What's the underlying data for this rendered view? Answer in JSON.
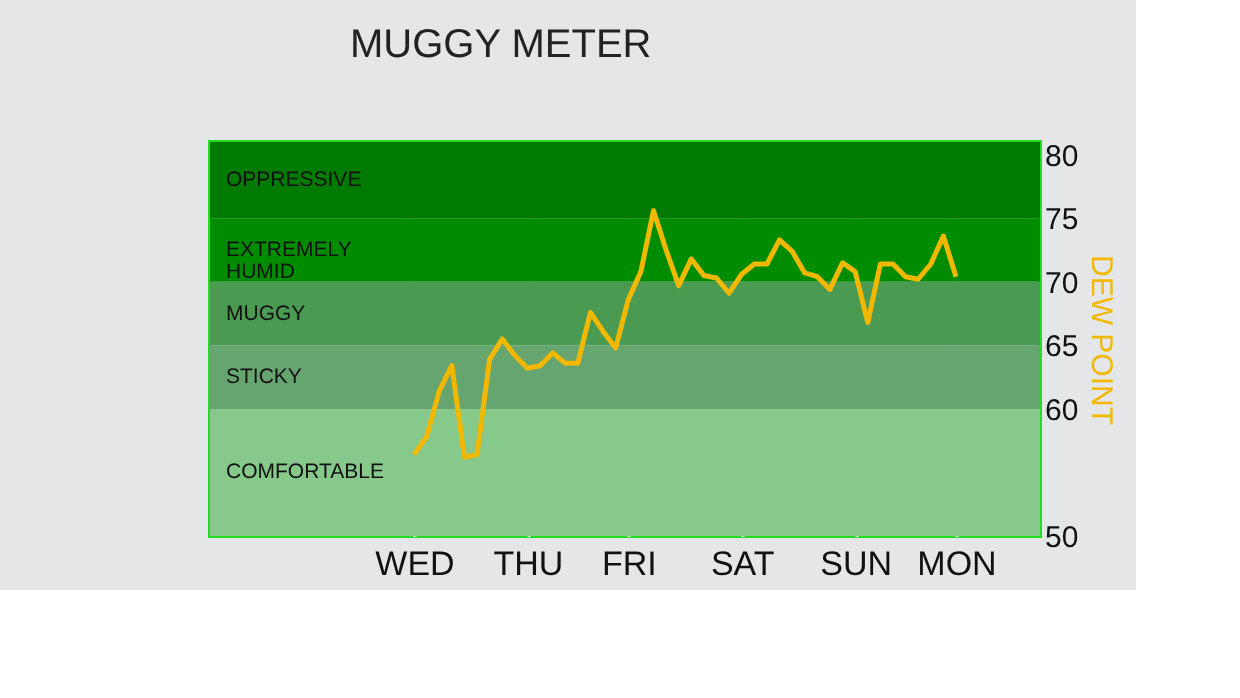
{
  "chart_data": {
    "type": "line",
    "title": "MUGGY METER",
    "ylabel": "DEW POINT",
    "categories": [
      "WED",
      null,
      null,
      null,
      null,
      null,
      null,
      null,
      null,
      "THU",
      null,
      null,
      null,
      null,
      null,
      null,
      null,
      "FRI",
      null,
      null,
      null,
      null,
      null,
      null,
      null,
      null,
      "SAT",
      null,
      null,
      null,
      null,
      null,
      null,
      null,
      null,
      "SUN",
      null,
      null,
      null,
      null,
      null,
      null,
      null,
      "MON"
    ],
    "series": [
      {
        "color": "#f2b800",
        "values": [
          56.4,
          57.8,
          61.4,
          63.4,
          56.2,
          56.4,
          63.9,
          65.5,
          64.2,
          63.2,
          63.4,
          64.4,
          63.6,
          63.6,
          67.6,
          66.1,
          64.8,
          68.6,
          70.8,
          75.6,
          72.5,
          69.7,
          71.8,
          70.5,
          70.3,
          69.1,
          70.6,
          71.4,
          71.4,
          73.3,
          72.4,
          70.7,
          70.4,
          69.4,
          71.5,
          70.8,
          66.8,
          71.4,
          71.4,
          70.4,
          70.2,
          71.4,
          73.6,
          70.4
        ]
      }
    ],
    "ylim": [
      50,
      81
    ],
    "yticks": [
      50,
      60,
      65,
      70,
      75,
      80
    ],
    "grid": "x",
    "marker": "none",
    "line_style": "solid",
    "bands": [
      {
        "axis": "y",
        "from": 75,
        "to": 81,
        "label": "OPPRESSIVE",
        "color": "#007a00"
      },
      {
        "axis": "y",
        "from": 70,
        "to": 75,
        "label": "EXTREMELY HUMID",
        "color": "#008c00"
      },
      {
        "axis": "y",
        "from": 65,
        "to": 70,
        "label": "MUGGY",
        "color": "#4a9a52"
      },
      {
        "axis": "y",
        "from": 60,
        "to": 65,
        "label": "STICKY",
        "color": "#66a56f"
      },
      {
        "axis": "y",
        "from": 50,
        "to": 60,
        "label": "COMFORTABLE",
        "color": "#86c98a"
      }
    ]
  }
}
